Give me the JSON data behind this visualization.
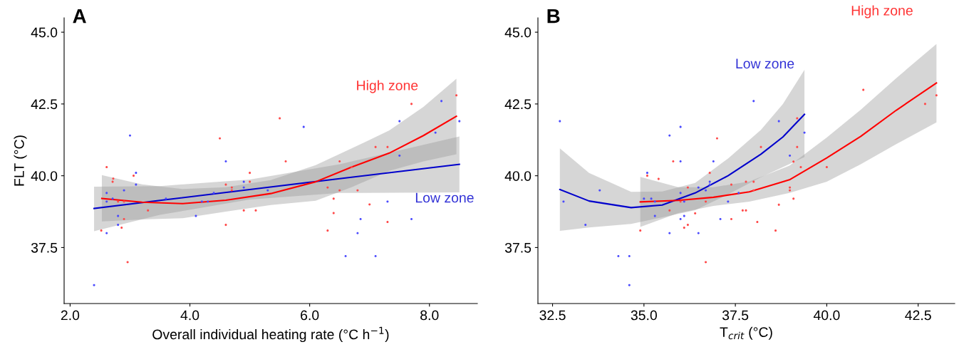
{
  "chart_data": [
    {
      "type": "scatter",
      "title": "A",
      "xlabel": "Overall individual heating rate (°C h$^{−1}$)",
      "ylabel": "FLT (°C)",
      "xlim": [
        1.9,
        8.8
      ],
      "ylim": [
        35.55,
        45.5
      ],
      "xticks": [
        {
          "value": 2,
          "label": "2.0"
        },
        {
          "value": 4,
          "label": "4.0"
        },
        {
          "value": 6,
          "label": "6.0"
        },
        {
          "value": 8,
          "label": "8.0"
        }
      ],
      "yticks": [
        {
          "value": 37.5,
          "label": "37.5"
        },
        {
          "value": 40,
          "label": "40.0"
        },
        {
          "value": 42.5,
          "label": "42.5"
        },
        {
          "value": 45,
          "label": "45.0"
        }
      ],
      "grid": false,
      "legend": false,
      "series": [
        {
          "type": "line",
          "name": "Low zone",
          "color": "#0000cc",
          "x": [
            2.4,
            3.5,
            5.0,
            6.5,
            8.5
          ],
          "values": [
            38.86,
            39.14,
            39.52,
            39.9,
            40.4
          ],
          "lower": [
            38.07,
            38.64,
            39.17,
            39.4,
            39.42
          ],
          "upper": [
            39.62,
            39.64,
            39.87,
            40.4,
            41.37
          ]
        },
        {
          "type": "line",
          "name": "High zone",
          "color": "#ff0000",
          "x": [
            2.53,
            3.2,
            3.88,
            4.6,
            5.35,
            6.1,
            6.7,
            7.33,
            7.9,
            8.45
          ],
          "values": [
            39.21,
            39.08,
            39.03,
            39.15,
            39.38,
            39.79,
            40.3,
            40.79,
            41.4,
            42.07
          ],
          "lower": [
            38.41,
            38.48,
            38.52,
            38.75,
            38.98,
            39.13,
            39.6,
            40.17,
            40.5,
            40.75
          ],
          "upper": [
            40.02,
            39.7,
            39.54,
            39.6,
            39.85,
            40.37,
            40.95,
            41.58,
            42.4,
            43.38
          ]
        },
        {
          "marker": "circle",
          "color": "#4a4aff",
          "x": [
            3.0,
            4.6,
            3.1,
            3.1,
            2.61,
            2.9,
            2.61,
            2.71,
            3.6,
            4.4,
            4.2,
            4.3,
            4.9,
            4.9,
            5.3,
            2.8,
            4.1,
            2.8,
            2.61,
            2.4,
            5.9,
            7.5,
            8.2,
            8.5,
            8.1,
            7.5,
            7.3,
            6.85,
            7.7,
            6.8,
            6.6,
            7.1
          ],
          "values": [
            41.4,
            40.5,
            40.1,
            39.69,
            39.4,
            39.49,
            39.1,
            39.2,
            39.2,
            39.4,
            39.1,
            39.1,
            39.79,
            39.59,
            39.49,
            38.6,
            38.6,
            38.29,
            38.0,
            36.19,
            41.7,
            41.9,
            42.6,
            41.9,
            41.5,
            40.7,
            39.1,
            38.49,
            38.49,
            38.0,
            37.2,
            37.2
          ]
        },
        {
          "marker": "circle",
          "color": "#ff4a4a",
          "x": [
            4.5,
            2.61,
            3.06,
            2.72,
            2.71,
            5.0,
            4.6,
            4.7,
            4.7,
            5.0,
            2.8,
            2.9,
            3.3,
            4.9,
            5.1,
            2.9,
            4.6,
            2.86,
            2.52,
            2.96,
            5.5,
            5.6,
            6.5,
            6.7,
            7.1,
            7.3,
            7.7,
            8.45,
            6.3,
            6.5,
            6.8,
            6.4,
            7.0,
            6.4,
            7.3,
            6.3
          ],
          "values": [
            41.3,
            40.3,
            40.0,
            39.9,
            39.79,
            40.1,
            39.69,
            39.59,
            39.49,
            39.79,
            39.1,
            39.1,
            38.79,
            38.79,
            38.79,
            38.49,
            38.29,
            38.19,
            38.09,
            36.99,
            42.0,
            40.5,
            40.5,
            40.3,
            41.0,
            41.0,
            42.5,
            42.8,
            39.59,
            39.49,
            39.49,
            39.2,
            39.0,
            38.7,
            38.39,
            38.09
          ]
        }
      ]
    },
    {
      "type": "scatter",
      "title": "B",
      "xlabel": "T$_{crit}$ (°C)",
      "xlim": [
        32.1,
        43.5
      ],
      "ylim": [
        35.55,
        45.5
      ],
      "xticks": [
        {
          "value": 32.5,
          "label": "32.5"
        },
        {
          "value": 35,
          "label": "35.0"
        },
        {
          "value": 37.5,
          "label": "37.5"
        },
        {
          "value": 40,
          "label": "40.0"
        },
        {
          "value": 42.5,
          "label": "42.5"
        }
      ],
      "yticks": [
        {
          "value": 37.5,
          "label": "37.5"
        },
        {
          "value": 40,
          "label": "40.0"
        },
        {
          "value": 42.5,
          "label": "42.5"
        },
        {
          "value": 45,
          "label": "45.0"
        }
      ],
      "grid": false,
      "legend": false,
      "series": [
        {
          "type": "line",
          "name": "Low zone",
          "color": "#0000cc",
          "x": [
            32.7,
            33.5,
            34.65,
            35.5,
            36.4,
            37.3,
            38.2,
            38.8,
            39.39
          ],
          "values": [
            39.52,
            39.12,
            38.89,
            38.98,
            39.4,
            40.0,
            40.75,
            41.35,
            42.14
          ],
          "lower": [
            38.08,
            38.2,
            38.32,
            38.55,
            38.8,
            39.35,
            39.95,
            40.3,
            40.65
          ],
          "upper": [
            40.95,
            40.1,
            39.44,
            39.45,
            39.75,
            40.6,
            41.6,
            42.5,
            43.69
          ]
        },
        {
          "type": "line",
          "name": "High zone",
          "color": "#ff0000",
          "x": [
            34.9,
            35.94,
            36.9,
            37.88,
            38.98,
            40.0,
            40.93,
            41.9,
            43.0
          ],
          "values": [
            39.09,
            39.14,
            39.25,
            39.44,
            39.86,
            40.62,
            41.37,
            42.28,
            43.23
          ],
          "lower": [
            38.22,
            38.7,
            38.95,
            39.1,
            39.4,
            39.79,
            40.4,
            41.1,
            41.86
          ],
          "upper": [
            39.96,
            39.6,
            39.6,
            39.8,
            40.35,
            41.33,
            42.3,
            43.4,
            44.59
          ]
        },
        {
          "marker": "circle",
          "color": "#4a4aff",
          "x": [
            32.7,
            32.8,
            33.79,
            33.4,
            34.3,
            34.6,
            34.6,
            35.09,
            35.0,
            35.2,
            35.3,
            35.3,
            35.7,
            36.0,
            36.0,
            36.0,
            36.1,
            36.1,
            36.0,
            35.7,
            36.49,
            36.49,
            36.69,
            36.8,
            36.8,
            36.9,
            37.09,
            37.3,
            37.59,
            38.0,
            38.69,
            39.39,
            38.99
          ],
          "values": [
            41.9,
            39.1,
            39.49,
            38.29,
            37.2,
            37.2,
            36.19,
            40.1,
            39.2,
            39.2,
            39.1,
            38.6,
            41.4,
            41.7,
            40.5,
            39.4,
            39.1,
            38.6,
            38.49,
            38.0,
            39.59,
            38.0,
            39.49,
            39.79,
            39.69,
            40.5,
            38.49,
            39.1,
            39.4,
            42.6,
            41.9,
            41.5,
            40.7
          ]
        },
        {
          "marker": "circle",
          "color": "#ff4a4a",
          "x": [
            35.09,
            35.4,
            35.8,
            36.2,
            36.0,
            35.7,
            36.2,
            36.1,
            34.9,
            36.4,
            36.69,
            36.8,
            37.0,
            36.69,
            37.39,
            37.39,
            37.79,
            37.7,
            37.79,
            38.2,
            39.19,
            39.19,
            39.09,
            39.29,
            40.0,
            38.0,
            38.0,
            38.99,
            38.99,
            39.09,
            38.69,
            38.1,
            38.6,
            41.0,
            42.69,
            43.0
          ],
          "values": [
            40.0,
            39.89,
            40.5,
            39.59,
            39.1,
            38.79,
            38.29,
            38.19,
            38.09,
            38.69,
            39.1,
            40.1,
            41.3,
            36.99,
            39.69,
            38.49,
            39.79,
            38.79,
            38.79,
            41.0,
            42.0,
            41.0,
            40.49,
            40.3,
            40.3,
            39.79,
            39.49,
            39.59,
            39.49,
            39.2,
            38.99,
            38.39,
            38.09,
            42.99,
            42.5,
            42.8
          ]
        }
      ]
    }
  ]
}
